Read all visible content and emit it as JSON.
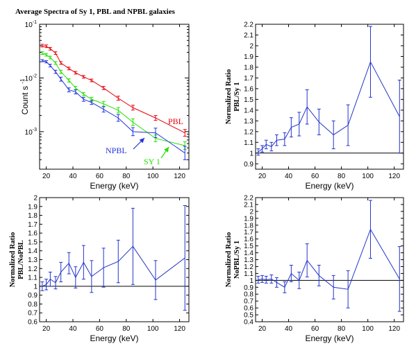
{
  "chart_data": [
    {
      "type": "line",
      "title": "Average Spectra of Sy 1, PBL and NPBL  galaxies",
      "xlabel": "Energy (keV)",
      "ylabel": "Count s",
      "ylabel_exp": "-1",
      "xlim": [
        15,
        127
      ],
      "ylim": [
        0.0002,
        0.1
      ],
      "yscale": "log",
      "xticks": [
        20,
        40,
        60,
        80,
        100,
        120
      ],
      "yticks": [
        {
          "value": 0.001,
          "base": "10",
          "exp": "-3"
        },
        {
          "value": 0.01,
          "base": "10",
          "exp": "-2"
        },
        {
          "value": 0.1,
          "base": "10",
          "exp": "-1"
        }
      ],
      "series": [
        {
          "name": "PBL",
          "color": "#e8000b",
          "x": [
            17,
            20,
            23,
            27,
            31,
            37,
            42,
            48,
            54,
            63,
            74,
            85,
            102,
            124
          ],
          "y": [
            0.04,
            0.039,
            0.035,
            0.029,
            0.019,
            0.015,
            0.0125,
            0.0105,
            0.009,
            0.0065,
            0.0042,
            0.0028,
            0.0018,
            0.00095
          ],
          "err": [
            0.1,
            0.1,
            0.1,
            0.1,
            0.1,
            0.1,
            0.1,
            0.1,
            0.1,
            0.12,
            0.15,
            0.18,
            0.18,
            0.25
          ]
        },
        {
          "name": "SY 1",
          "color": "#22e000",
          "x": [
            17,
            20,
            23,
            27,
            31,
            37,
            42,
            48,
            54,
            63,
            74,
            85,
            102,
            124
          ],
          "y": [
            0.029,
            0.027,
            0.024,
            0.019,
            0.013,
            0.009,
            0.0065,
            0.005,
            0.004,
            0.0033,
            0.0025,
            0.0015,
            0.00075,
            0.00055
          ],
          "err": [
            0.1,
            0.1,
            0.1,
            0.1,
            0.12,
            0.12,
            0.12,
            0.12,
            0.15,
            0.18,
            0.2,
            0.25,
            0.25,
            0.28
          ]
        },
        {
          "name": "NPBL",
          "color": "#2233dd",
          "x": [
            17,
            20,
            23,
            27,
            31,
            37,
            42,
            48,
            54,
            63,
            74,
            85,
            102,
            124
          ],
          "y": [
            0.021,
            0.02,
            0.017,
            0.013,
            0.0095,
            0.006,
            0.0055,
            0.004,
            0.0035,
            0.0026,
            0.0018,
            0.001,
            0.00095,
            0.0004
          ],
          "err": [
            0.08,
            0.08,
            0.1,
            0.12,
            0.15,
            0.15,
            0.15,
            0.15,
            0.15,
            0.2,
            0.25,
            0.3,
            0.35,
            0.5
          ]
        }
      ],
      "annotations": [
        {
          "text": "PBL",
          "color": "#e8000b"
        },
        {
          "text": "NPBL",
          "color": "#2233dd"
        },
        {
          "text": "SY 1",
          "color": "#22e000"
        }
      ]
    },
    {
      "type": "line",
      "xlabel": "Energy (keV)",
      "ylabel_line1": "Normalized Ratio",
      "ylabel_line2": "PBL/Sy 1",
      "xlim": [
        15,
        127
      ],
      "ylim": [
        0.85,
        2.2
      ],
      "reference_line": 1,
      "xticks": [
        20,
        40,
        60,
        80,
        100,
        120
      ],
      "yticks": [
        "0.9",
        "1",
        "1.1",
        "1.2",
        "1.3",
        "1.4",
        "1.5",
        "1.6",
        "1.7",
        "1.8",
        "1.9",
        "2",
        "2.1",
        "2.2"
      ],
      "ytick_values": [
        0.9,
        1.0,
        1.1,
        1.2,
        1.3,
        1.4,
        1.5,
        1.6,
        1.7,
        1.8,
        1.9,
        2.0,
        2.1,
        2.2
      ],
      "series": [
        {
          "name": "",
          "color": "#2233cc",
          "x": [
            17,
            20,
            23,
            27,
            31,
            37,
            42,
            48,
            54,
            63,
            74,
            85,
            102,
            124
          ],
          "y": [
            1.01,
            1.04,
            1.08,
            1.06,
            1.12,
            1.13,
            1.24,
            1.27,
            1.43,
            1.29,
            1.17,
            1.26,
            1.85,
            1.34
          ],
          "err": [
            0.03,
            0.03,
            0.04,
            0.04,
            0.05,
            0.06,
            0.09,
            0.11,
            0.16,
            0.12,
            0.13,
            0.19,
            0.33,
            0.34
          ]
        }
      ]
    },
    {
      "type": "line",
      "xlabel": "Energy (keV)",
      "ylabel_line1": "Normalized Ratio",
      "ylabel_line2": "PBL/NoPBL",
      "xlim": [
        15,
        127
      ],
      "ylim": [
        0.6,
        2.0
      ],
      "reference_line": 1,
      "xticks": [
        20,
        40,
        60,
        80,
        100,
        120
      ],
      "yticks": [
        "0.6",
        "0.7",
        "0.8",
        "0.9",
        "1",
        "1.1",
        "1.2",
        "1.3",
        "1.4",
        "1.5",
        "1.6",
        "1.7",
        "1.8",
        "1.9",
        "2"
      ],
      "ytick_values": [
        0.6,
        0.7,
        0.8,
        0.9,
        1.0,
        1.1,
        1.2,
        1.3,
        1.4,
        1.5,
        1.6,
        1.7,
        1.8,
        1.9,
        2.0
      ],
      "series": [
        {
          "name": "",
          "color": "#2233cc",
          "x": [
            17,
            20,
            23,
            27,
            31,
            37,
            42,
            48,
            54,
            63,
            74,
            85,
            102,
            124
          ],
          "y": [
            1.0,
            1.02,
            1.08,
            1.04,
            1.16,
            1.26,
            1.1,
            1.27,
            1.11,
            1.21,
            1.28,
            1.45,
            1.07,
            1.32
          ],
          "err": [
            0.05,
            0.06,
            0.08,
            0.07,
            0.11,
            0.12,
            0.12,
            0.19,
            0.18,
            0.22,
            0.24,
            0.43,
            0.22,
            0.59
          ]
        }
      ]
    },
    {
      "type": "line",
      "xlabel": "Energy (keV)",
      "ylabel_line1": "Normalized Ratio",
      "ylabel_line2": "NoPBL/Sy 1",
      "xlim": [
        15,
        127
      ],
      "ylim": [
        0.4,
        2.2
      ],
      "reference_line": 1,
      "xticks": [
        20,
        40,
        60,
        80,
        100,
        120
      ],
      "yticks": [
        "0.4",
        "0.5",
        "0.6",
        "0.7",
        "0.8",
        "0.9",
        "1",
        "1.1",
        "1.2",
        "1.3",
        "1.4",
        "1.5",
        "1.6",
        "1.7",
        "1.8",
        "1.9",
        "2",
        "2.1",
        "2.2"
      ],
      "ytick_values": [
        0.4,
        0.5,
        0.6,
        0.7,
        0.8,
        0.9,
        1.0,
        1.1,
        1.2,
        1.3,
        1.4,
        1.5,
        1.6,
        1.7,
        1.8,
        1.9,
        2.0,
        2.1,
        2.2
      ],
      "series": [
        {
          "name": "",
          "color": "#2233cc",
          "x": [
            17,
            20,
            23,
            27,
            31,
            37,
            42,
            48,
            54,
            63,
            74,
            85,
            102,
            124
          ],
          "y": [
            1.01,
            1.02,
            1.01,
            1.02,
            0.97,
            0.9,
            1.1,
            1.0,
            1.29,
            1.07,
            0.9,
            0.87,
            1.74,
            1.02
          ],
          "err": [
            0.05,
            0.05,
            0.05,
            0.06,
            0.07,
            0.08,
            0.12,
            0.12,
            0.24,
            0.15,
            0.17,
            0.27,
            0.42,
            0.47
          ]
        }
      ]
    }
  ]
}
